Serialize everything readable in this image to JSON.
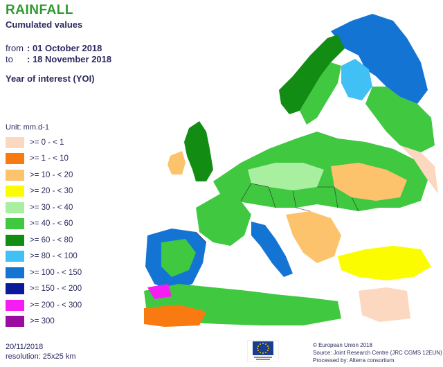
{
  "header": {
    "title": "RAINFALL",
    "subtitle": "Cumulated values",
    "from_label": "from",
    "from_value": ": 01 October 2018",
    "to_label": "to",
    "to_value": ": 18 November 2018",
    "yoi": "Year of interest (YOI)"
  },
  "legend": {
    "unit": "Unit:  mm.d-1",
    "items": [
      {
        "label": ">= 0 - < 1",
        "color": "#fcd8c0"
      },
      {
        "label": ">= 1 - < 10",
        "color": "#f97a10"
      },
      {
        "label": ">= 10 - < 20",
        "color": "#fcc36c"
      },
      {
        "label": ">= 20 - < 30",
        "color": "#fcfc00"
      },
      {
        "label": ">= 30 - < 40",
        "color": "#a8f0a0"
      },
      {
        "label": ">= 40 - < 60",
        "color": "#40c840"
      },
      {
        "label": ">= 60 - < 80",
        "color": "#128c12"
      },
      {
        "label": ">= 80 - < 100",
        "color": "#40c0f4"
      },
      {
        "label": ">= 100 - < 150",
        "color": "#1474d4"
      },
      {
        "label": ">= 150 - < 200",
        "color": "#0a1a98"
      },
      {
        "label": ">= 200 - < 300",
        "color": "#f81cf4"
      },
      {
        "label": ">= 300",
        "color": "#9a0ca0"
      }
    ]
  },
  "footer": {
    "date": "20/11/2018",
    "resolution": "resolution:  25x25 km",
    "copyright": "© European Union 2018",
    "source": "Source: Joint Research Centre (JRC CGMS 12EUN)",
    "processed": "Processed by: Alterra consortium"
  },
  "colors": {
    "sea": "#ffffff",
    "border": "#2a2a2a"
  }
}
